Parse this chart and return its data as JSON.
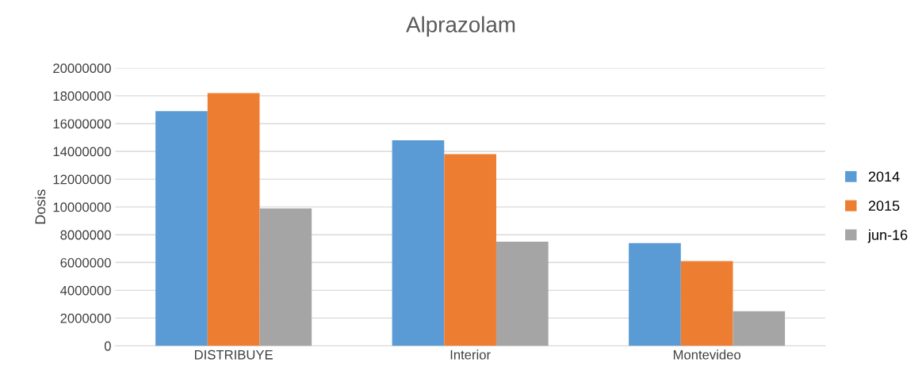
{
  "chart_data": {
    "type": "bar",
    "title": "Alprazolam",
    "ylabel": "Dosis",
    "categories": [
      "DISTRIBUYE",
      "Interior",
      "Montevideo"
    ],
    "series": [
      {
        "name": "2014",
        "color": "#5b9bd5",
        "values": [
          16900000,
          14800000,
          7400000
        ]
      },
      {
        "name": "2015",
        "color": "#ed7d31",
        "values": [
          18200000,
          13800000,
          6100000
        ]
      },
      {
        "name": "jun-16",
        "color": "#a5a5a5",
        "values": [
          9900000,
          7500000,
          2500000
        ]
      }
    ],
    "ylim": [
      0,
      20000000
    ],
    "yticks": [
      0,
      2000000,
      4000000,
      6000000,
      8000000,
      10000000,
      12000000,
      14000000,
      16000000,
      18000000,
      20000000
    ],
    "grid": "y",
    "legend": "right"
  }
}
